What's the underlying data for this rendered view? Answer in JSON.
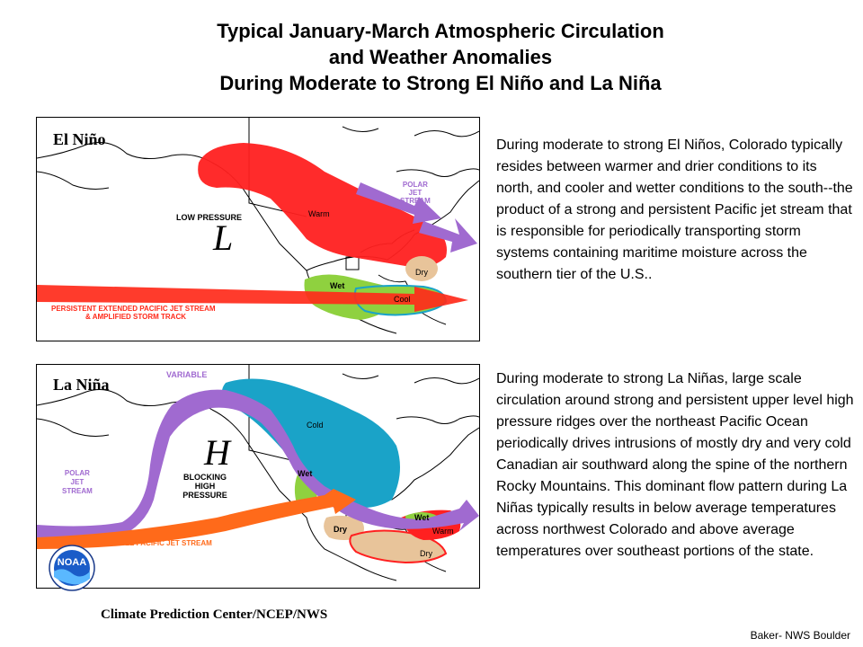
{
  "title": {
    "line1": "Typical January-March Atmospheric Circulation",
    "line2": "and Weather Anomalies",
    "line3": "During Moderate to Strong El Niño and La Niña"
  },
  "el_nino": {
    "panel_label": "El Niño",
    "low_pressure_label": "LOW PRESSURE",
    "low_symbol": "L",
    "warm_label": "Warm",
    "dry_label": "Dry",
    "wet_label": "Wet",
    "cool_label": "Cool",
    "polar_jet_label": [
      "POLAR",
      "JET",
      "STREAM"
    ],
    "pacific_jet_label": [
      "PERSISTENT EXTENDED PACIFIC JET STREAM",
      "& AMPLIFIED STORM TRACK"
    ],
    "description": "During moderate to strong El Niños, Colorado typically resides between warmer and drier conditions to its north, and cooler and wetter conditions to the south--the product of a strong and persistent Pacific jet stream that is responsible for periodically transporting storm systems containing maritime moisture across the southern tier of the U.S.."
  },
  "la_nina": {
    "panel_label": "La Niña",
    "variable_label": "VARIABLE",
    "high_symbol": "H",
    "blocking_label": [
      "BLOCKING",
      "HIGH",
      "PRESSURE"
    ],
    "cold_label": "Cold",
    "wet_label_nw": "Wet",
    "wet_label_ne": "Wet",
    "warm_label": "Warm",
    "dry_label_sw": "Dry",
    "dry_label_se": "Dry",
    "polar_jet_label": [
      "POLAR",
      "JET",
      "STREAM"
    ],
    "pacific_jet_label": "VARIABLE PACIFIC JET STREAM",
    "description": "During moderate to strong La Niñas, large scale circulation around strong and persistent upper level high pressure ridges over the northeast Pacific Ocean periodically drives intrusions of mostly dry and very cold Canadian air southward along the spine of the northern Rocky Mountains.  This dominant flow pattern during La Niñas typically results in below average temperatures across northwest Colorado and above average temperatures over southeast portions of the state."
  },
  "footer": {
    "logo_text": "NOAA",
    "attribution": "Climate Prediction Center/NCEP/NWS",
    "credit": "Baker- NWS Boulder"
  },
  "colors": {
    "warm_red": "#ff1a1a",
    "cold_blue": "#1aa3c8",
    "wet_green": "#8fd13f",
    "dry_tan": "#e8c49a",
    "polar_jet_purple": "#a06ad0",
    "pacific_jet_orange": "#ff6a1a"
  }
}
